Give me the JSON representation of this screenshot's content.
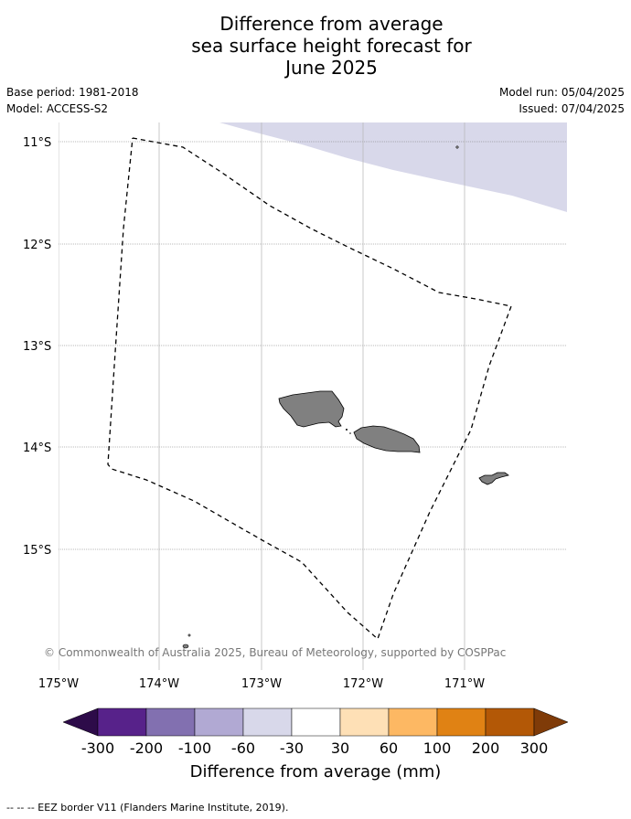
{
  "title_lines": [
    "Difference from average",
    "sea surface height forecast for",
    "June 2025"
  ],
  "meta": {
    "base_period": "Base period: 1981-2018",
    "model": "Model: ACCESS-S2",
    "model_run": "Model run: 05/04/2025",
    "issued": "Issued: 07/04/2025"
  },
  "map": {
    "lat_labels": [
      "11°S",
      "12°S",
      "13°S",
      "14°S",
      "15°S"
    ],
    "lon_labels": [
      "175°W",
      "174°W",
      "173°W",
      "172°W",
      "171°W"
    ],
    "copyright": "© Commonwealth of Australia 2025, Bureau of Meteorology, supported by COSPPac",
    "colors": {
      "land": "#808080",
      "shading_-60_-30": "#d8d8ea",
      "eez_border": "#000000",
      "grid": "#aaaaaa"
    }
  },
  "colorbar": {
    "labels": [
      "-300",
      "-200",
      "-100",
      "-60",
      "-30",
      "30",
      "60",
      "100",
      "200",
      "300"
    ],
    "colors": [
      "#2d0b49",
      "#57228a",
      "#8270b0",
      "#b1a9d3",
      "#d8d8ea",
      "#ffffff",
      "#fee0b6",
      "#fdb863",
      "#e08214",
      "#b35806",
      "#7f3b08"
    ],
    "title": "Difference from average (mm)"
  },
  "footer": "--  --  -- EEZ border V11 (Flanders Marine Institute, 2019)."
}
